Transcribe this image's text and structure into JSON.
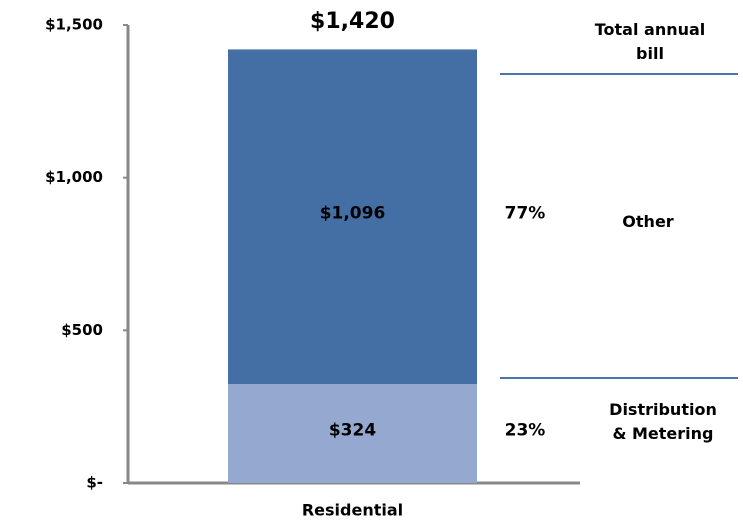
{
  "chart_data": {
    "type": "stacked_bar",
    "categories": [
      "Residential"
    ],
    "series": [
      {
        "name": "Distribution & Metering",
        "color": "#95a9d0",
        "values": [
          324
        ],
        "value_labels": [
          "$324"
        ],
        "shares": [
          23
        ],
        "share_labels": [
          "23%"
        ]
      },
      {
        "name": "Other",
        "color": "#436fa4",
        "values": [
          1096
        ],
        "value_labels": [
          "$1,096"
        ],
        "shares": [
          77
        ],
        "share_labels": [
          "77%"
        ]
      }
    ],
    "total_name": "Total annual bill",
    "totals": [
      1420
    ],
    "total_labels": [
      "$1,420"
    ],
    "ylim": [
      0,
      1500
    ],
    "yticks": [
      {
        "value": 0,
        "label": "$-"
      },
      {
        "value": 500,
        "label": "$500"
      },
      {
        "value": 1000,
        "label": "$1,000"
      },
      {
        "value": 1500,
        "label": "$1,500"
      }
    ]
  }
}
